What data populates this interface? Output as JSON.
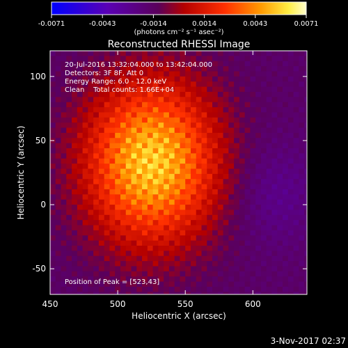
{
  "colorbar": {
    "ticks": [
      "-0.0071",
      "-0.0043",
      "-0.0014",
      "0.0014",
      "0.0043",
      "0.0071"
    ],
    "unit_label": "(photons cm⁻² s⁻¹ asec⁻²)"
  },
  "chart_data": {
    "type": "heatmap",
    "title": "Reconstructed RHESSI Image",
    "xlabel": "Heliocentric X (arcsec)",
    "ylabel": "Heliocentric Y (arcsec)",
    "xlim": [
      450,
      640
    ],
    "ylim": [
      -70,
      120
    ],
    "xticks": [
      "450",
      "500",
      "550",
      "600"
    ],
    "yticks": [
      "-50",
      "0",
      "50",
      "100"
    ],
    "color_range": [
      -0.0071,
      0.0071
    ],
    "colormap": "blue-purple-red-orange-yellow-white",
    "peak": [
      523,
      43
    ],
    "annotations": [
      "20-Jul-2016 13:32:04.000 to 13:42:04.000",
      "Detectors: 3F 8F, Att 0",
      "Energy Range: 6.0 - 12.0 keV",
      "Clean    Total counts: 1.66E+04"
    ],
    "peak_label": "Position of Peak = [523,43]"
  },
  "footer": {
    "timestamp": "3-Nov-2017 02:37"
  }
}
